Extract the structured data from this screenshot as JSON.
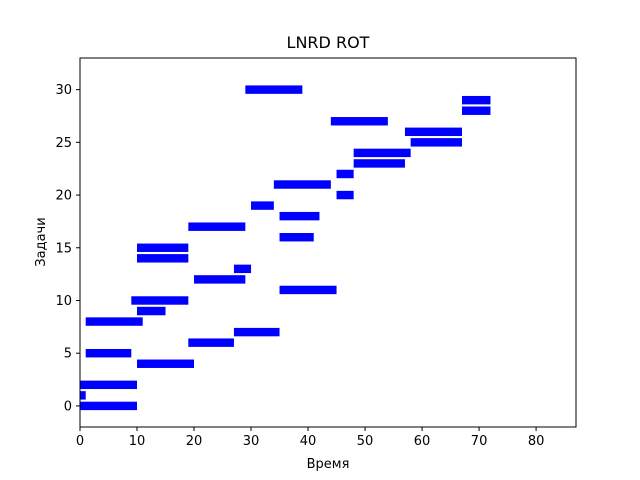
{
  "chart_data": {
    "type": "bar",
    "orientation": "horizontal",
    "title": "LNRD ROT",
    "xlabel": "Время",
    "ylabel": "Задачи",
    "xlim": [
      0,
      87
    ],
    "ylim": [
      -2,
      33
    ],
    "xticks": [
      0,
      10,
      20,
      30,
      40,
      50,
      60,
      70,
      80
    ],
    "yticks": [
      0,
      5,
      10,
      15,
      20,
      25,
      30
    ],
    "grid": false,
    "bar_color": "#0000ff",
    "bars": [
      {
        "task": 0,
        "start": 0,
        "end": 10
      },
      {
        "task": 1,
        "start": 0,
        "end": 1
      },
      {
        "task": 2,
        "start": 0,
        "end": 10
      },
      {
        "task": 4,
        "start": 10,
        "end": 20
      },
      {
        "task": 5,
        "start": 1,
        "end": 9
      },
      {
        "task": 6,
        "start": 19,
        "end": 27
      },
      {
        "task": 7,
        "start": 27,
        "end": 35
      },
      {
        "task": 8,
        "start": 1,
        "end": 11
      },
      {
        "task": 9,
        "start": 10,
        "end": 15
      },
      {
        "task": 10,
        "start": 9,
        "end": 19
      },
      {
        "task": 11,
        "start": 35,
        "end": 45
      },
      {
        "task": 12,
        "start": 20,
        "end": 29
      },
      {
        "task": 13,
        "start": 27,
        "end": 30
      },
      {
        "task": 14,
        "start": 10,
        "end": 19
      },
      {
        "task": 15,
        "start": 10,
        "end": 19
      },
      {
        "task": 16,
        "start": 35,
        "end": 41
      },
      {
        "task": 17,
        "start": 19,
        "end": 29
      },
      {
        "task": 18,
        "start": 35,
        "end": 42
      },
      {
        "task": 19,
        "start": 30,
        "end": 34
      },
      {
        "task": 20,
        "start": 45,
        "end": 48
      },
      {
        "task": 21,
        "start": 34,
        "end": 44
      },
      {
        "task": 22,
        "start": 45,
        "end": 48
      },
      {
        "task": 23,
        "start": 48,
        "end": 57
      },
      {
        "task": 24,
        "start": 48,
        "end": 58
      },
      {
        "task": 25,
        "start": 58,
        "end": 67
      },
      {
        "task": 26,
        "start": 57,
        "end": 67
      },
      {
        "task": 27,
        "start": 44,
        "end": 54
      },
      {
        "task": 28,
        "start": 67,
        "end": 72
      },
      {
        "task": 29,
        "start": 67,
        "end": 72
      },
      {
        "task": 30,
        "start": 29,
        "end": 39
      }
    ]
  }
}
